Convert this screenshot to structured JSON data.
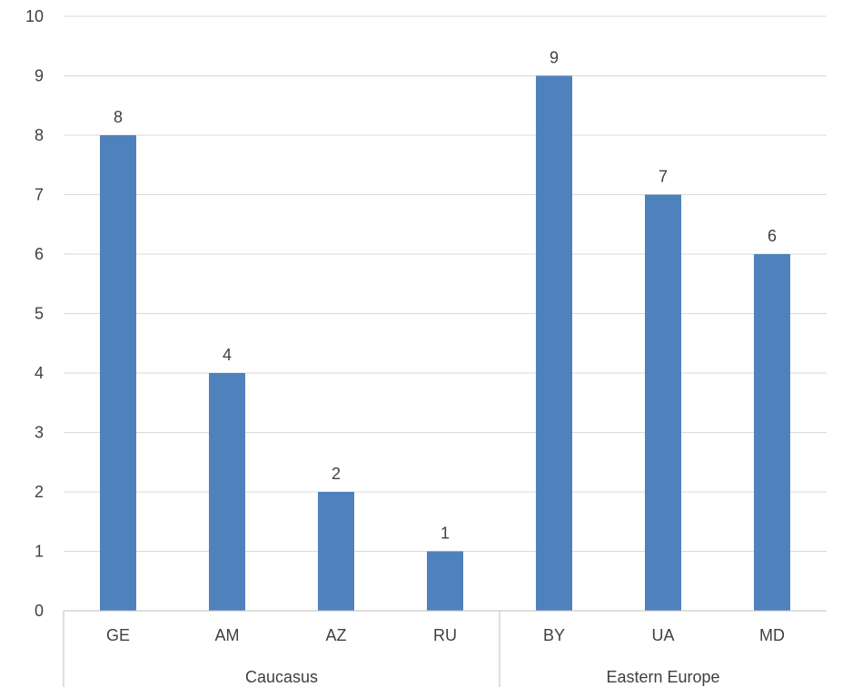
{
  "chart_data": {
    "type": "bar",
    "categories": [
      "GE",
      "AM",
      "AZ",
      "RU",
      "BY",
      "UA",
      "MD"
    ],
    "groups": [
      {
        "label": "Caucasus",
        "categories": [
          "GE",
          "AM",
          "AZ",
          "RU"
        ]
      },
      {
        "label": "Eastern Europe",
        "categories": [
          "BY",
          "UA",
          "MD"
        ]
      }
    ],
    "series": [
      {
        "values": [
          8,
          4,
          2,
          1,
          9,
          7,
          6
        ],
        "color": "#4f81bd"
      }
    ],
    "data_labels": [
      "8",
      "4",
      "2",
      "1",
      "9",
      "7",
      "6"
    ],
    "y_ticks": [
      "0",
      "1",
      "2",
      "3",
      "4",
      "5",
      "6",
      "7",
      "8",
      "9",
      "10"
    ],
    "ylim": [
      0,
      10
    ],
    "grid": true,
    "legend": "none",
    "title": "",
    "xlabel": "",
    "ylabel": ""
  }
}
